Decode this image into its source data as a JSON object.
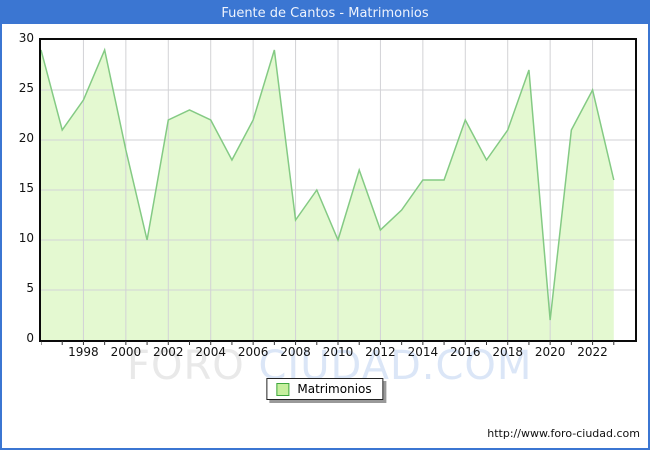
{
  "header": {
    "title": "Fuente de Cantos - Matrimonios"
  },
  "legend": {
    "label": "Matrimonios"
  },
  "footer": {
    "url": "http://www.foro-ciudad.com"
  },
  "watermark": {
    "part1": "FORO",
    "part2": "CIUDAD.COM"
  },
  "colors": {
    "frame_border": "#3b76d2",
    "header_bg": "#3b76d2",
    "header_text": "#eef3fd",
    "area_fill": "#e4f9d1",
    "area_line": "#84ca84",
    "grid": "#d2d2d6",
    "plot_border": "#0a0a0a",
    "legend_swatch_fill": "#c6ef9e",
    "legend_swatch_border": "#3fa73f",
    "watermark_gray": "#e9e9e9",
    "watermark_blue": "#dbe6f7"
  },
  "chart_data": {
    "type": "area",
    "title": "Fuente de Cantos - Matrimonios",
    "xlabel": "",
    "ylabel": "",
    "x": [
      1996,
      1997,
      1998,
      1999,
      2000,
      2001,
      2002,
      2003,
      2004,
      2005,
      2006,
      2007,
      2008,
      2009,
      2010,
      2011,
      2012,
      2013,
      2014,
      2015,
      2016,
      2017,
      2018,
      2019,
      2020,
      2021,
      2022,
      2023
    ],
    "series": [
      {
        "name": "Matrimonios",
        "values": [
          29,
          21,
          24,
          29,
          19,
          10,
          22,
          23,
          22,
          18,
          22,
          29,
          12,
          15,
          10,
          17,
          11,
          13,
          16,
          16,
          22,
          18,
          21,
          27,
          2,
          21,
          25,
          16
        ]
      }
    ],
    "xlim": [
      1996,
      2024
    ],
    "ylim": [
      0,
      30
    ],
    "yticks": [
      0,
      5,
      10,
      15,
      20,
      25,
      30
    ],
    "xtick_years": [
      1998,
      2000,
      2002,
      2004,
      2006,
      2008,
      2010,
      2012,
      2014,
      2016,
      2018,
      2020,
      2022
    ],
    "grid": true,
    "legend_position": "bottom-center"
  }
}
